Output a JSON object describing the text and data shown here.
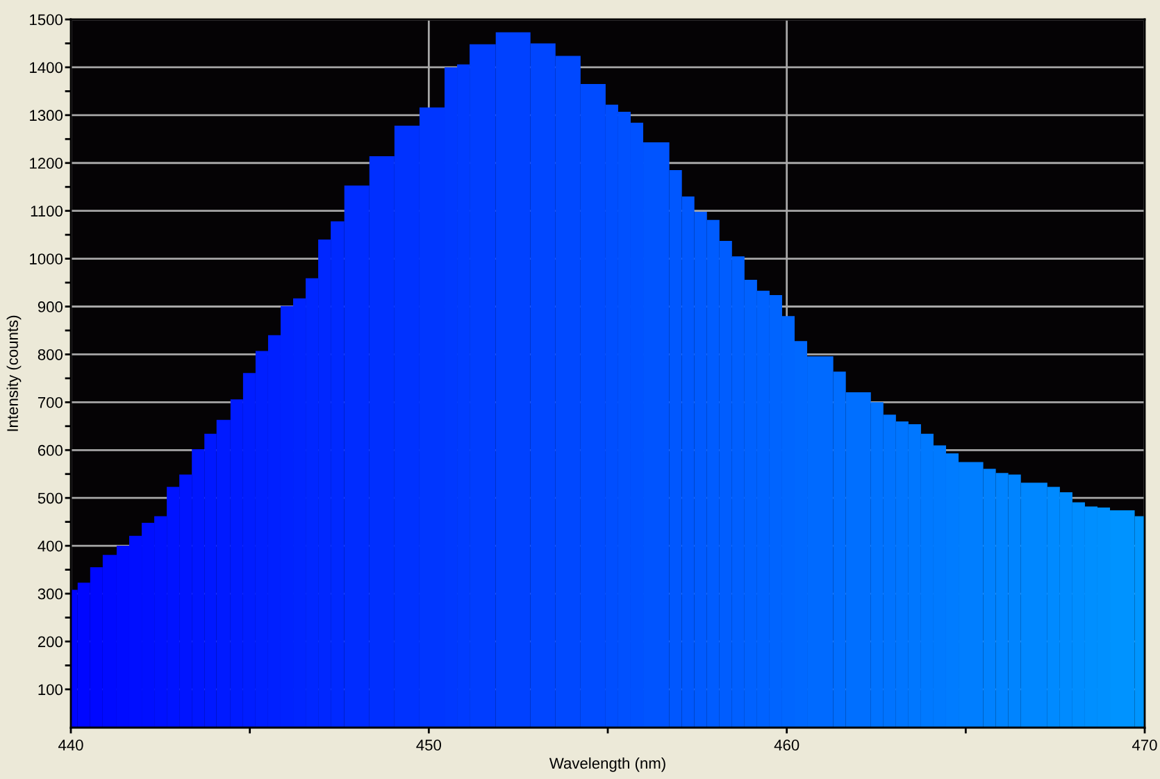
{
  "chart_data": {
    "type": "histogram",
    "xlabel": "Wavelength (nm)",
    "ylabel": "Intensity (counts)",
    "bins": [
      440.0,
      440.19,
      440.54,
      440.89,
      441.28,
      441.63,
      441.98,
      442.33,
      442.68,
      443.03,
      443.38,
      443.73,
      444.07,
      444.46,
      444.81,
      445.16,
      445.51,
      445.86,
      446.21,
      446.56,
      446.91,
      447.26,
      447.64,
      448.34,
      449.04,
      449.74,
      450.44,
      450.79,
      451.14,
      451.87,
      452.84,
      453.54,
      454.24,
      454.94,
      455.29,
      455.64,
      455.99,
      456.72,
      457.07,
      457.42,
      457.77,
      458.12,
      458.47,
      458.82,
      459.17,
      459.52,
      459.87,
      460.22,
      460.57,
      461.3,
      461.65,
      462.35,
      462.7,
      463.05,
      463.4,
      463.75,
      464.1,
      464.45,
      464.8,
      465.49,
      465.84,
      466.19,
      466.54,
      467.28,
      467.63,
      467.98,
      468.33,
      468.68,
      469.03,
      469.72,
      470.0
    ],
    "values": [
      308,
      323,
      355,
      381,
      400,
      421,
      448,
      462,
      523,
      549,
      602,
      634,
      663,
      706,
      761,
      807,
      840,
      901,
      917,
      959,
      1040,
      1078,
      1153,
      1214,
      1278,
      1316,
      1400,
      1406,
      1448,
      1473,
      1450,
      1424,
      1365,
      1322,
      1307,
      1284,
      1243,
      1185,
      1130,
      1098,
      1081,
      1037,
      1005,
      956,
      933,
      924,
      880,
      828,
      796,
      764,
      721,
      700,
      674,
      660,
      654,
      634,
      610,
      593,
      575,
      561,
      552,
      549,
      532,
      523,
      512,
      491,
      482,
      480,
      474,
      462
    ],
    "colors": [
      "#0005ff",
      "#0007ff",
      "#0008ff",
      "#000aff",
      "#000cff",
      "#000eff",
      "#000fff",
      "#0011ff",
      "#0013ff",
      "#0014ff",
      "#0016ff",
      "#0018ff",
      "#001aff",
      "#001bff",
      "#001dff",
      "#001fff",
      "#0020ff",
      "#0022ff",
      "#0024ff",
      "#0026ff",
      "#0027ff",
      "#0029ff",
      "#002cff",
      "#002fff",
      "#0032ff",
      "#0036ff",
      "#0038ff",
      "#003aff",
      "#003dff",
      "#0041ff",
      "#0045ff",
      "#0048ff",
      "#004bff",
      "#004eff",
      "#0050ff",
      "#0051ff",
      "#0054ff",
      "#0057ff",
      "#0058ff",
      "#005aff",
      "#005cff",
      "#005dff",
      "#005fff",
      "#0061ff",
      "#0062ff",
      "#0064ff",
      "#0066ff",
      "#0068ff",
      "#006aff",
      "#006dff",
      "#006fff",
      "#0072ff",
      "#0073ff",
      "#0075ff",
      "#0077ff",
      "#0079ff",
      "#007aff",
      "#007cff",
      "#007eff",
      "#0081ff",
      "#0083ff",
      "#0084ff",
      "#0087ff",
      "#008aff",
      "#008bff",
      "#008dff",
      "#008fff",
      "#0090ff",
      "#0093ff",
      "#0095ff"
    ],
    "xlim": [
      440,
      470
    ],
    "xticks": [
      440,
      {
        "value": 445,
        "label": null
      },
      450,
      {
        "value": 455,
        "label": null
      },
      460,
      {
        "value": 465,
        "label": null
      },
      470
    ],
    "ylim": [
      20,
      1500
    ],
    "yticks": [
      100,
      {
        "value": 150,
        "label": null
      },
      200,
      {
        "value": 250,
        "label": null
      },
      300,
      {
        "value": 350,
        "label": null
      },
      400,
      {
        "value": 450,
        "label": null
      },
      500,
      {
        "value": 550,
        "label": null
      },
      600,
      {
        "value": 650,
        "label": null
      },
      700,
      {
        "value": 750,
        "label": null
      },
      800,
      {
        "value": 850,
        "label": null
      },
      900,
      {
        "value": 950,
        "label": null
      },
      1000,
      {
        "value": 1050,
        "label": null
      },
      1100,
      {
        "value": 1150,
        "label": null
      },
      1200,
      {
        "value": 1250,
        "label": null
      },
      1300,
      {
        "value": 1350,
        "label": null
      },
      1400,
      {
        "value": 1450,
        "label": null
      },
      1500
    ],
    "grid": true
  }
}
